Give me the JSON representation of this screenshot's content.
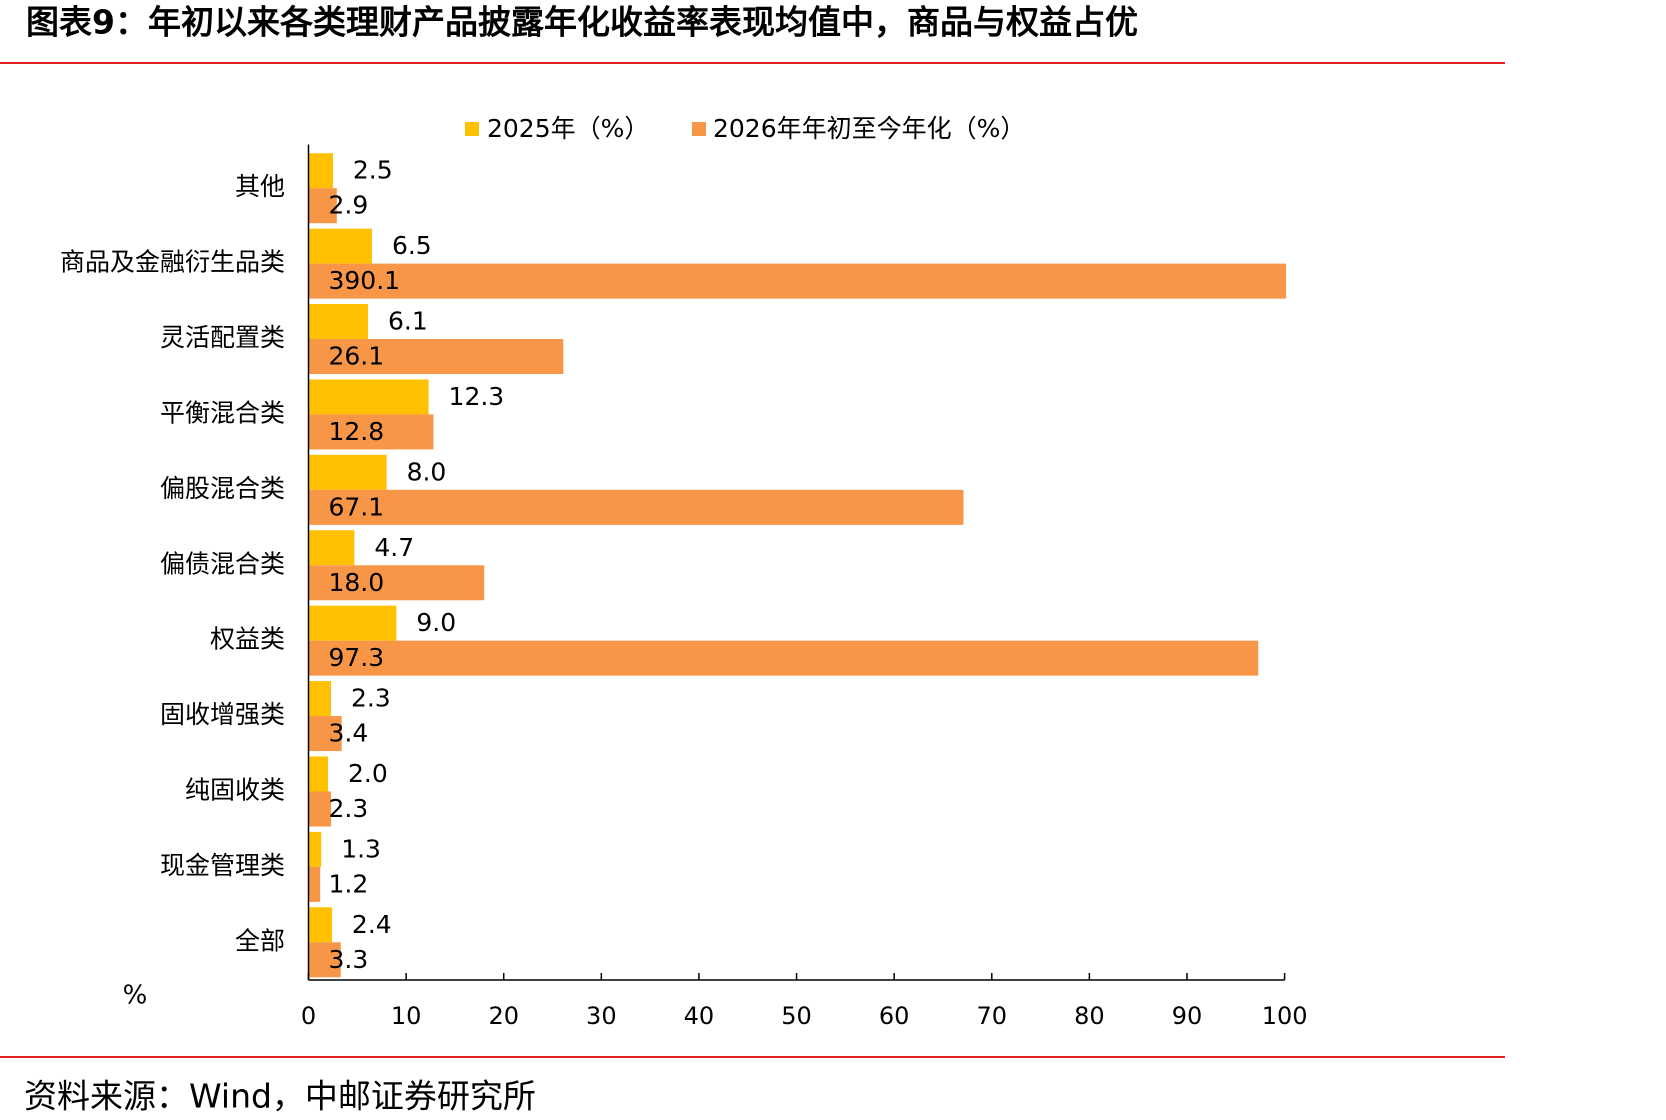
{
  "chart_data": {
    "type": "barh",
    "title": "图表9：年初以来各类理财产品披露年化收益率表现均值中，商品与权益占优",
    "categories": [
      "其他",
      "商品及金融衍生品类",
      "灵活配置类",
      "平衡混合类",
      "偏股混合类",
      "偏债混合类",
      "权益类",
      "固收增强类",
      "纯固收类",
      "现金管理类",
      "全部"
    ],
    "series": [
      {
        "name": "2025年（%）",
        "color": "#FFC000",
        "values": [
          2.5,
          6.5,
          6.1,
          12.3,
          8.0,
          4.7,
          9.0,
          2.3,
          2.0,
          1.3,
          2.4
        ],
        "value_labels": [
          "2.5",
          "6.5",
          "6.1",
          "12.3",
          "8.0",
          "4.7",
          "9.0",
          "2.3",
          "2.0",
          "1.3",
          "2.4"
        ]
      },
      {
        "name": "2026年年初至今年化（%）",
        "color": "#F79646",
        "values": [
          2.9,
          390.1,
          26.1,
          12.8,
          67.1,
          18.0,
          97.3,
          3.4,
          2.3,
          1.2,
          3.3
        ],
        "value_labels": [
          "2.9",
          "390.1",
          "26.1",
          "12.8",
          "67.1",
          "18.0",
          "97.3",
          "3.4",
          "2.3",
          "1.2",
          "3.3"
        ]
      }
    ],
    "xlabel": "%",
    "xlim": [
      0,
      100
    ],
    "xticks": [
      0,
      10,
      20,
      30,
      40,
      50,
      60,
      70,
      80,
      90,
      100
    ],
    "legend": "top"
  },
  "source": "资料来源：Wind，中邮证券研究所"
}
